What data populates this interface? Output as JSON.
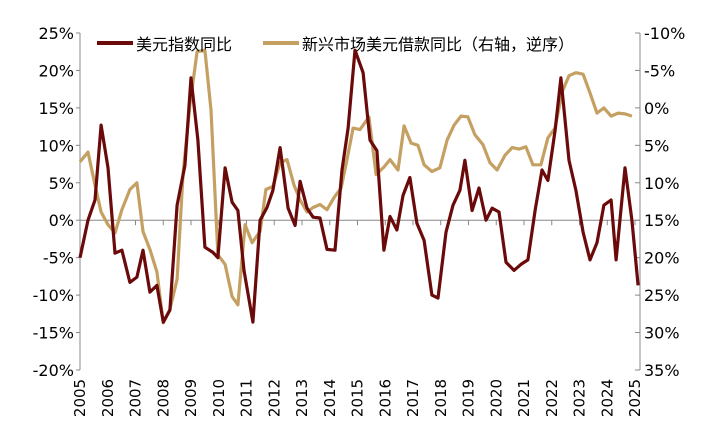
{
  "chart_data": {
    "type": "line",
    "title": "",
    "x_ticks": [
      "2005",
      "2006",
      "2007",
      "2008",
      "2009",
      "2010",
      "2011",
      "2012",
      "2013",
      "2014",
      "2015",
      "2016",
      "2017",
      "2018",
      "2019",
      "2020",
      "2021",
      "2022",
      "2023",
      "2024",
      "2025"
    ],
    "x_range": [
      2005,
      2025.3
    ],
    "left_axis": {
      "range": [
        -20,
        25
      ],
      "ticks": [
        "-20%",
        "-15%",
        "-10%",
        "-5%",
        "0%",
        "5%",
        "10%",
        "15%",
        "20%",
        "25%"
      ],
      "tick_values": [
        -20,
        -15,
        -10,
        -5,
        0,
        5,
        10,
        15,
        20,
        25
      ]
    },
    "right_axis": {
      "range": [
        -10,
        35
      ],
      "reversed": true,
      "ticks": [
        "-10%",
        "-5%",
        "0%",
        "5%",
        "10%",
        "15%",
        "20%",
        "25%",
        "30%",
        "35%"
      ],
      "tick_values": [
        -10,
        -5,
        0,
        5,
        10,
        15,
        20,
        25,
        30,
        35
      ]
    },
    "grid": false,
    "legend_position": "top",
    "series": [
      {
        "name": "美元指数同比",
        "axis": "left",
        "color": "#6B0A0A",
        "x": [
          2005.0,
          2005.29,
          2005.54,
          2005.76,
          2006.01,
          2006.26,
          2006.51,
          2006.8,
          2007.05,
          2007.27,
          2007.52,
          2007.77,
          2008.0,
          2008.24,
          2008.5,
          2008.78,
          2009.0,
          2009.25,
          2009.5,
          2009.79,
          2009.97,
          2010.23,
          2010.48,
          2010.69,
          2010.91,
          2011.23,
          2011.49,
          2011.74,
          2011.95,
          2012.21,
          2012.5,
          2012.75,
          2012.93,
          2013.18,
          2013.4,
          2013.65,
          2013.9,
          2014.19,
          2014.44,
          2014.66,
          2014.91,
          2015.2,
          2015.45,
          2015.7,
          2015.95,
          2016.17,
          2016.42,
          2016.64,
          2016.89,
          2017.14,
          2017.4,
          2017.68,
          2017.9,
          2018.19,
          2018.44,
          2018.69,
          2018.87,
          2019.13,
          2019.38,
          2019.63,
          2019.85,
          2020.1,
          2020.35,
          2020.64,
          2020.89,
          2021.14,
          2021.4,
          2021.65,
          2021.86,
          2022.12,
          2022.33,
          2022.62,
          2022.87,
          2023.13,
          2023.38,
          2023.63,
          2023.88,
          2024.14,
          2024.32,
          2024.64,
          2024.89,
          2025.11
        ],
        "y": [
          -5,
          0,
          2.7,
          12.7,
          7,
          -4.4,
          -4,
          -8.3,
          -7.6,
          -4,
          -9.6,
          -8.7,
          -13.6,
          -12,
          2,
          7.3,
          19,
          10.7,
          -3.6,
          -4.3,
          -5,
          7,
          2.4,
          1.3,
          -6.7,
          -13.6,
          0,
          1.7,
          4,
          9.7,
          1.6,
          -0.7,
          5.2,
          1.6,
          0.4,
          0.3,
          -3.9,
          -4,
          6.7,
          12.3,
          22.7,
          19.7,
          10.7,
          9.3,
          -4,
          0.5,
          -1.3,
          3.3,
          5.7,
          -0.4,
          -2.7,
          -10,
          -10.4,
          -1.6,
          2,
          4,
          8,
          1.3,
          4.3,
          0,
          1.6,
          1.1,
          -5.6,
          -6.7,
          -5.9,
          -5.3,
          1.3,
          6.7,
          5.3,
          12,
          19,
          8,
          4,
          -1.6,
          -5.3,
          -3,
          2,
          2.7,
          -5.3,
          7,
          0,
          -8.7
        ]
      },
      {
        "name": "新兴市场美元借款同比（右轴，逆序）",
        "axis": "right",
        "color": "#C4A062",
        "x": [
          2005.0,
          2005.29,
          2005.54,
          2005.76,
          2006.01,
          2006.26,
          2006.51,
          2006.8,
          2007.05,
          2007.27,
          2007.52,
          2007.77,
          2008.0,
          2008.24,
          2008.5,
          2008.71,
          2008.96,
          2009.22,
          2009.5,
          2009.72,
          2009.97,
          2010.23,
          2010.48,
          2010.69,
          2010.95,
          2011.2,
          2011.49,
          2011.7,
          2011.95,
          2012.21,
          2012.46,
          2012.71,
          2012.93,
          2013.18,
          2013.4,
          2013.65,
          2013.9,
          2014.15,
          2014.41,
          2014.62,
          2014.84,
          2015.09,
          2015.41,
          2015.67,
          2015.95,
          2016.17,
          2016.46,
          2016.68,
          2016.93,
          2017.18,
          2017.4,
          2017.68,
          2017.97,
          2018.23,
          2018.48,
          2018.73,
          2018.98,
          2019.23,
          2019.52,
          2019.77,
          2020.03,
          2020.32,
          2020.57,
          2020.82,
          2021.07,
          2021.32,
          2021.61,
          2021.86,
          2022.12,
          2022.37,
          2022.62,
          2022.87,
          2023.13,
          2023.38,
          2023.63,
          2023.88,
          2024.14,
          2024.39,
          2024.64,
          2024.89
        ],
        "y": [
          7.2,
          5.9,
          10.3,
          13.9,
          15.6,
          16.7,
          13.6,
          10.9,
          10,
          16.5,
          18.9,
          21.9,
          28.7,
          26.9,
          22.9,
          8.9,
          -0.4,
          -7.5,
          -7.7,
          0.3,
          19.6,
          20.9,
          25.2,
          26.3,
          15.6,
          18,
          16.5,
          10.9,
          10.5,
          7.3,
          6.9,
          10.3,
          12.3,
          13.9,
          13.3,
          12.9,
          13.6,
          12,
          10.7,
          6.9,
          2.7,
          2.9,
          1.2,
          8.9,
          7.9,
          6.9,
          8.3,
          2.4,
          4.7,
          5,
          7.6,
          8.5,
          8,
          4.3,
          2.3,
          1.1,
          1.2,
          3.6,
          4.9,
          7.3,
          8.3,
          6.3,
          5.3,
          5.5,
          5.2,
          7.6,
          7.6,
          4,
          2.7,
          -2.1,
          -4.3,
          -4.7,
          -4.5,
          -2,
          0.7,
          0,
          1.1,
          0.7,
          0.8,
          1.1
        ]
      }
    ]
  }
}
